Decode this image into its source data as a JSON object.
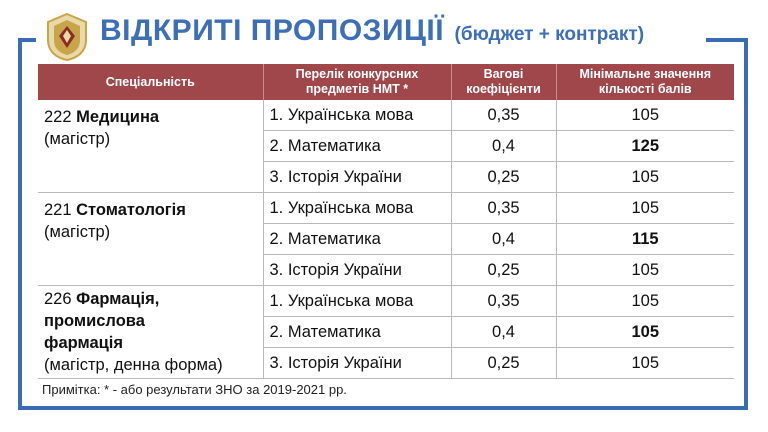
{
  "title": {
    "main": "ВІДКРИТІ ПРОПОЗИЦІЇ",
    "sub": "(бюджет + контракт)"
  },
  "table": {
    "headers": [
      "Спеціальність",
      "Перелік конкурсних предметів НМТ *",
      "Вагові коефіцієнти",
      "Мінімальне значення кількості балів"
    ],
    "specialties": [
      {
        "code": "222",
        "name": "Медицина",
        "degree": "(магістр)",
        "subjects": [
          {
            "subject": "1. Українська мова",
            "weight": "0,35",
            "min_score": "105",
            "bold": false
          },
          {
            "subject": "2. Математика",
            "weight": "0,4",
            "min_score": "125",
            "bold": true
          },
          {
            "subject": "3. Історія України",
            "weight": "0,25",
            "min_score": "105",
            "bold": false
          }
        ]
      },
      {
        "code": "221",
        "name": "Стоматологія",
        "degree": "(магістр)",
        "subjects": [
          {
            "subject": "1. Українська мова",
            "weight": "0,35",
            "min_score": "105",
            "bold": false
          },
          {
            "subject": "2. Математика",
            "weight": "0,4",
            "min_score": "115",
            "bold": true
          },
          {
            "subject": "3. Історія України",
            "weight": "0,25",
            "min_score": "105",
            "bold": false
          }
        ]
      },
      {
        "code": "226",
        "name_line1": "Фармація,",
        "name_line2": "промислова",
        "name_line3": "фармація",
        "degree": "(магістр, денна форма)",
        "subjects": [
          {
            "subject": "1. Українська мова",
            "weight": "0,35",
            "min_score": "105",
            "bold": false
          },
          {
            "subject": "2. Математика",
            "weight": "0,4",
            "min_score": "105",
            "bold": true
          },
          {
            "subject": "3. Історія України",
            "weight": "0,25",
            "min_score": "105",
            "bold": false
          }
        ]
      }
    ]
  },
  "note": "Примітка: * - або результати ЗНО за 2019-2021 рр.",
  "colors": {
    "frame": "#3a6db3",
    "title": "#3d6fb6",
    "header_bg": "#a0474b",
    "logo_gold": "#c9a54a",
    "logo_red": "#8a2a2a"
  },
  "icons": {
    "logo": "university-emblem-icon"
  }
}
